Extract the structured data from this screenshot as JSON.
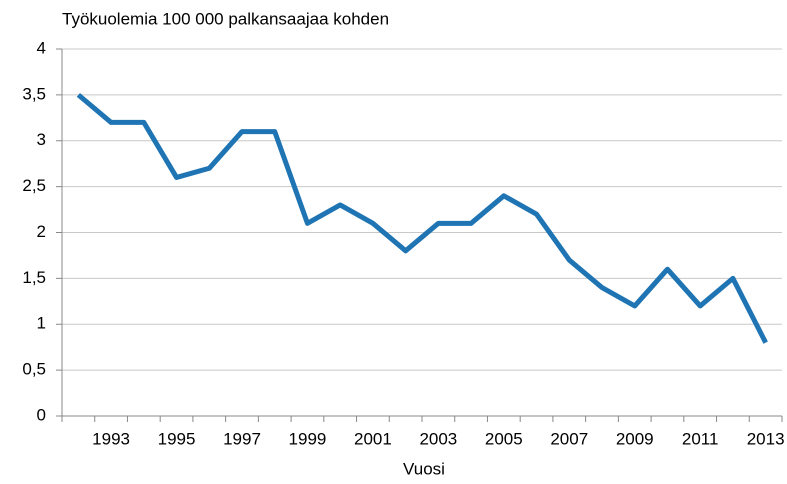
{
  "chart_data": {
    "type": "line",
    "title": "Työkuolemia 100 000 palkansaajaa kohden",
    "x_label": "Vuosi",
    "categories": [
      null,
      "1993",
      null,
      "1995",
      null,
      "1997",
      null,
      "1999",
      null,
      "2001",
      null,
      "2003",
      null,
      "2005",
      null,
      "2007",
      null,
      "2009",
      null,
      "2011",
      null,
      "2013"
    ],
    "series": [
      {
        "name": "Työkuolemia",
        "color": "#1f74b4",
        "values": [
          3.5,
          3.2,
          3.2,
          2.6,
          2.7,
          3.1,
          3.1,
          2.1,
          2.3,
          2.1,
          1.8,
          2.1,
          2.1,
          2.4,
          2.2,
          1.7,
          1.4,
          1.2,
          1.6,
          1.2,
          1.5,
          0.8
        ]
      }
    ],
    "ylim": [
      0,
      4
    ],
    "yticks": [
      0,
      {
        "value": 0.5,
        "label": "0,5"
      },
      1,
      {
        "value": 1.5,
        "label": "1,5"
      },
      2,
      {
        "value": 2.5,
        "label": "2,5"
      },
      3,
      {
        "value": 3.5,
        "label": "3,5"
      },
      4
    ],
    "grid": true
  }
}
